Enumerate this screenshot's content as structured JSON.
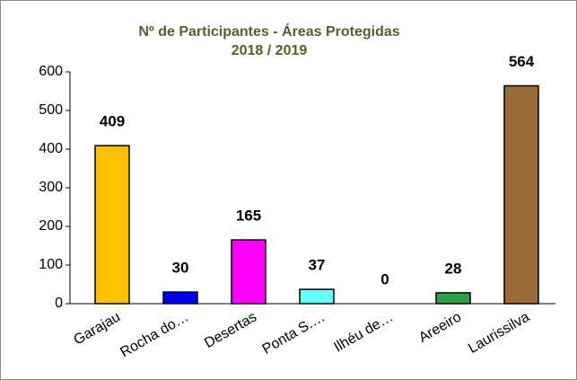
{
  "chart_data": {
    "type": "bar",
    "title": "Nº de Participantes - Áreas Protegidas",
    "subtitle": "2018 / 2019",
    "categories": [
      "Garajau",
      "Rocha do…",
      "Desertas",
      "Ponta S.…",
      "Ilhéu de…",
      "Areeiro",
      "Laurissilva"
    ],
    "values": [
      409,
      30,
      165,
      37,
      0,
      28,
      564
    ],
    "colors": [
      "#ffc000",
      "#0000ee",
      "#ff00ff",
      "#66ffff",
      "#888888",
      "#2ea043",
      "#9b6b3a"
    ],
    "ylim": [
      0,
      600
    ],
    "yticks": [
      0,
      100,
      200,
      300,
      400,
      500,
      600
    ],
    "grid": false
  }
}
